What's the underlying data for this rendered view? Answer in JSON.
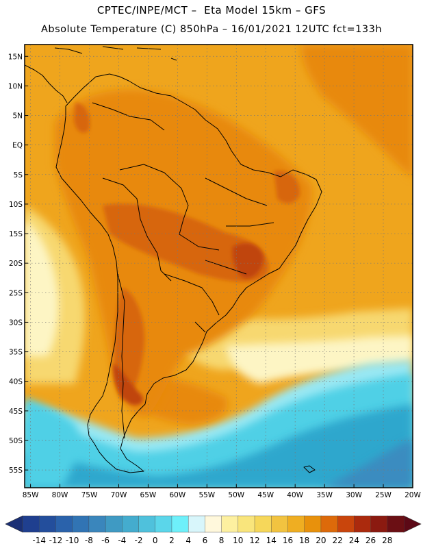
{
  "header": {
    "line1": "CPTEC/INPE/MCT –  Eta Model 15km – GFS",
    "line2": "Absolute Temperature (C) 850hPa – 16/01/2021 12UTC fct=133h"
  },
  "map": {
    "lat_range": [
      -58,
      17
    ],
    "lon_range": [
      -86,
      -20
    ],
    "lat_ticks": [
      {
        "v": 15,
        "label": "15N"
      },
      {
        "v": 10,
        "label": "10N"
      },
      {
        "v": 5,
        "label": "5N"
      },
      {
        "v": 0,
        "label": "EQ"
      },
      {
        "v": -5,
        "label": "5S"
      },
      {
        "v": -10,
        "label": "10S"
      },
      {
        "v": -15,
        "label": "15S"
      },
      {
        "v": -20,
        "label": "20S"
      },
      {
        "v": -25,
        "label": "25S"
      },
      {
        "v": -30,
        "label": "30S"
      },
      {
        "v": -35,
        "label": "35S"
      },
      {
        "v": -40,
        "label": "40S"
      },
      {
        "v": -45,
        "label": "45S"
      },
      {
        "v": -50,
        "label": "50S"
      },
      {
        "v": -55,
        "label": "55S"
      }
    ],
    "lon_ticks": [
      {
        "v": -85,
        "label": "85W"
      },
      {
        "v": -80,
        "label": "80W"
      },
      {
        "v": -75,
        "label": "75W"
      },
      {
        "v": -70,
        "label": "70W"
      },
      {
        "v": -65,
        "label": "65W"
      },
      {
        "v": -60,
        "label": "60W"
      },
      {
        "v": -55,
        "label": "55W"
      },
      {
        "v": -50,
        "label": "50W"
      },
      {
        "v": -45,
        "label": "45W"
      },
      {
        "v": -40,
        "label": "40W"
      },
      {
        "v": -35,
        "label": "35W"
      },
      {
        "v": -30,
        "label": "30W"
      },
      {
        "v": -25,
        "label": "25W"
      },
      {
        "v": -20,
        "label": "20W"
      }
    ],
    "field_colors": {
      "hot_core": "#c0440f",
      "hot": "#d7660f",
      "warm": "#e8890c",
      "mild": "#efa51d",
      "ocean_warm": "#f0b22c",
      "pale": "#f7d870",
      "cream": "#fdf5c4",
      "cold_light": "#9ae8f3",
      "cold": "#4fd0e6",
      "cold_deep": "#2fa7cd",
      "frozen": "#3b8cc0"
    }
  },
  "colorbar": {
    "labels": [
      "-14",
      "-12",
      "-10",
      "-8",
      "-6",
      "-4",
      "-2",
      "0",
      "2",
      "4",
      "6",
      "8",
      "10",
      "12",
      "14",
      "16",
      "18",
      "20",
      "22",
      "24",
      "26",
      "28"
    ],
    "colors": [
      "#1f3f8f",
      "#234e9c",
      "#2a62ab",
      "#3174b4",
      "#3a86bc",
      "#3f9ac3",
      "#44acce",
      "#4fc1dc",
      "#5bd6ea",
      "#6ef0fa",
      "#d8f6fb",
      "#fff8dc",
      "#fdf0a0",
      "#f9e57c",
      "#f6d75a",
      "#f2c340",
      "#efae22",
      "#e8910c",
      "#dd6a0a",
      "#c9450c",
      "#ab2a0d",
      "#8b1a10",
      "#6b0f14"
    ],
    "min_arrow_color": "#1a2f75",
    "max_arrow_color": "#5c0916"
  }
}
